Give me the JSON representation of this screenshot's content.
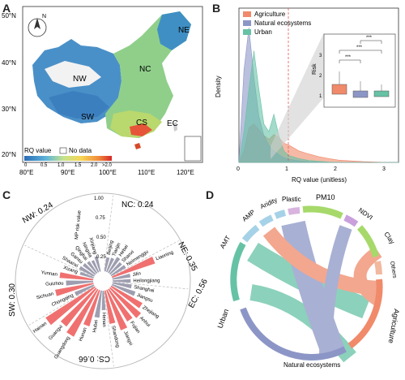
{
  "panels": {
    "a": {
      "letter": "A",
      "lat_labels": [
        "50°N",
        "40°N",
        "30°N",
        "20°N"
      ],
      "lon_labels": [
        "80°E",
        "90°E",
        "100°E",
        "110°E",
        "120°E"
      ],
      "regions": [
        "NE",
        "NC",
        "NW",
        "SW",
        "CS",
        "EC"
      ],
      "north_label": "N",
      "legend": {
        "title": "RQ value",
        "nodata": "No data",
        "ticks": [
          "0",
          "0.5",
          "1.0",
          "1.5",
          "2.0",
          ">2.0"
        ]
      }
    },
    "b": {
      "letter": "B",
      "xlabel": "RQ value (unitless)",
      "ylabel": "Density",
      "xticks": [
        "0",
        "1",
        "2",
        "3"
      ],
      "legend": [
        "Agriculture",
        "Natural ecosystems",
        "Urban"
      ],
      "inset": {
        "ylabel": "Risk",
        "yticks": [
          "1",
          "2",
          "3"
        ],
        "sig": [
          "***",
          "***",
          "***"
        ]
      },
      "colors": {
        "agriculture": "#f08a6a",
        "natural": "#8c96c6",
        "urban": "#66c2a5"
      }
    },
    "c": {
      "letter": "C",
      "axis_title": "MP risk value",
      "axis_ticks": [
        "1.00",
        "0.75",
        "0.50",
        "0.25"
      ],
      "sectors": [
        {
          "label": "NC: 0.24"
        },
        {
          "label": "NE: 0.35"
        },
        {
          "label": "EC: 0.56"
        },
        {
          "label": "CS: 0.66"
        },
        {
          "label": "SW: 0.30"
        },
        {
          "label": "NW: 0.24"
        }
      ],
      "provinces": [
        "Beijing",
        "Tianjin",
        "Hebei",
        "Shanxi",
        "Neimenggu",
        "Liaoning",
        "Jilin",
        "Heilongjiang",
        "Shanghai",
        "Jiangsu",
        "Zhejiang",
        "Anhui",
        "Fujian",
        "Jiangxi",
        "Shandong",
        "Henan",
        "Hubei",
        "Hunan",
        "Guangdong",
        "Guangxi",
        "Hainan",
        "Chongqing",
        "Sichuan",
        "Guizhou",
        "Yunnan",
        "Xizang",
        "Shaanxi",
        "Gansu",
        "Qinghai",
        "Ningxia",
        "Xinjiang"
      ],
      "colors": {
        "high": "#f07070",
        "low": "#9e9eb0"
      }
    },
    "d": {
      "letter": "D",
      "labels": [
        "Urban",
        "AMT",
        "AMP",
        "Aridity",
        "Plastic",
        "PM10",
        "NDVI",
        "Clay",
        "Others",
        "Agriculture",
        "Natural ecosystems"
      ],
      "colors": {
        "urban": "#66c2a5",
        "agriculture": "#f08a6a",
        "natural": "#8c96c6",
        "plastic": "#d8b4de",
        "ndvi": "#c9a0dc",
        "clay": "#a6d96a"
      }
    }
  },
  "chart_data": [
    {
      "type": "area",
      "xlabel": "RQ value (unitless)",
      "ylabel": "Density",
      "xlim": [
        0,
        3.2
      ],
      "x": [
        0,
        0.1,
        0.2,
        0.3,
        0.4,
        0.5,
        0.6,
        0.7,
        0.8,
        0.9,
        1.0,
        1.2,
        1.4,
        1.6,
        1.8,
        2.0,
        2.5,
        3.0
      ],
      "series": [
        {
          "name": "Agriculture",
          "values": [
            0.0,
            0.3,
            0.9,
            1.0,
            0.85,
            0.7,
            0.6,
            0.72,
            0.65,
            0.5,
            0.45,
            0.3,
            0.22,
            0.15,
            0.1,
            0.06,
            0.02,
            0.0
          ]
        },
        {
          "name": "Natural ecosystems",
          "values": [
            0.0,
            2.4,
            3.5,
            2.2,
            1.2,
            0.7,
            0.45,
            0.3,
            0.2,
            0.12,
            0.08,
            0.04,
            0.02,
            0.01,
            0.0,
            0.0,
            0.0,
            0.0
          ]
        },
        {
          "name": "Urban",
          "values": [
            0.0,
            0.8,
            1.9,
            2.9,
            1.9,
            1.0,
            0.8,
            1.25,
            0.7,
            0.3,
            0.18,
            0.1,
            0.05,
            0.03,
            0.01,
            0.0,
            0.0,
            0.0
          ]
        }
      ]
    },
    {
      "type": "bar",
      "categories": [
        "Beijing",
        "Tianjin",
        "Hebei",
        "Shanxi",
        "Neimenggu",
        "Liaoning",
        "Jilin",
        "Heilongjiang",
        "Shanghai",
        "Jiangsu",
        "Zhejiang",
        "Anhui",
        "Fujian",
        "Jiangxi",
        "Shandong",
        "Henan",
        "Hubei",
        "Hunan",
        "Guangdong",
        "Guangxi",
        "Hainan",
        "Chongqing",
        "Sichuan",
        "Guizhou",
        "Yunnan",
        "Xizang",
        "Shaanxi",
        "Gansu",
        "Qinghai",
        "Ningxia",
        "Xinjiang"
      ],
      "values": [
        0.22,
        0.23,
        0.28,
        0.24,
        0.26,
        0.7,
        0.28,
        0.28,
        0.3,
        0.38,
        0.55,
        0.62,
        0.58,
        0.66,
        0.52,
        0.3,
        0.42,
        0.58,
        0.82,
        0.75,
        0.9,
        0.32,
        0.6,
        0.42,
        0.52,
        0.22,
        0.26,
        0.24,
        0.22,
        0.2,
        0.24
      ],
      "ylim": [
        0,
        1.0
      ]
    }
  ]
}
